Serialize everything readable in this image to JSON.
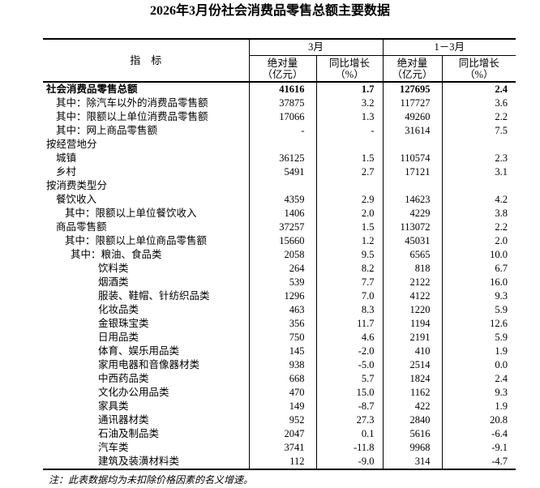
{
  "title": "2026年3月份社会消费品零售总额主要数据",
  "colors": {
    "text": "#000000",
    "background": "#ffffff",
    "border": "#000000"
  },
  "table": {
    "header": {
      "indicator": "指　标",
      "march": "3月",
      "jan_mar": "1－3月",
      "abs_line1": "绝对量",
      "abs_line2": "（亿元）",
      "yoy_line1": "同比增长",
      "yoy_line2": "（%）"
    },
    "rows": [
      {
        "label": "社会消费品零售总额",
        "indent": 0,
        "bold": true,
        "m_abs": "41616",
        "m_yoy": "1.7",
        "c_abs": "127695",
        "c_yoy": "2.4"
      },
      {
        "label": "其中：除汽车以外的消费品零售额",
        "indent": 1,
        "bold": false,
        "m_abs": "37875",
        "m_yoy": "3.2",
        "c_abs": "117727",
        "c_yoy": "3.6"
      },
      {
        "label": "其中：限额以上单位消费品零售额",
        "indent": 1,
        "bold": false,
        "m_abs": "17066",
        "m_yoy": "1.3",
        "c_abs": "49260",
        "c_yoy": "2.2"
      },
      {
        "label": "其中：网上商品零售额",
        "indent": 1,
        "bold": false,
        "m_abs": "-",
        "m_yoy": "-",
        "c_abs": "31614",
        "c_yoy": "7.5"
      },
      {
        "label": "按经营地分",
        "indent": 0,
        "bold": false,
        "m_abs": "",
        "m_yoy": "",
        "c_abs": "",
        "c_yoy": ""
      },
      {
        "label": "城镇",
        "indent": 1,
        "bold": false,
        "m_abs": "36125",
        "m_yoy": "1.5",
        "c_abs": "110574",
        "c_yoy": "2.3"
      },
      {
        "label": "乡村",
        "indent": 1,
        "bold": false,
        "m_abs": "5491",
        "m_yoy": "2.7",
        "c_abs": "17121",
        "c_yoy": "3.1"
      },
      {
        "label": "按消费类型分",
        "indent": 0,
        "bold": false,
        "m_abs": "",
        "m_yoy": "",
        "c_abs": "",
        "c_yoy": ""
      },
      {
        "label": "餐饮收入",
        "indent": 1,
        "bold": false,
        "m_abs": "4359",
        "m_yoy": "2.9",
        "c_abs": "14623",
        "c_yoy": "4.2"
      },
      {
        "label": "其中：限额以上单位餐饮收入",
        "indent": 2,
        "bold": false,
        "m_abs": "1406",
        "m_yoy": "2.0",
        "c_abs": "4229",
        "c_yoy": "3.8"
      },
      {
        "label": "商品零售额",
        "indent": 1,
        "bold": false,
        "m_abs": "37257",
        "m_yoy": "1.5",
        "c_abs": "113072",
        "c_yoy": "2.2"
      },
      {
        "label": "其中：限额以上单位商品零售额",
        "indent": 2,
        "bold": false,
        "m_abs": "15660",
        "m_yoy": "1.2",
        "c_abs": "45031",
        "c_yoy": "2.0"
      },
      {
        "label": "其中：粮油、食品类",
        "indent": 3,
        "bold": false,
        "m_abs": "2058",
        "m_yoy": "9.5",
        "c_abs": "6565",
        "c_yoy": "10.0"
      },
      {
        "label": "饮料类",
        "indent": 4,
        "bold": false,
        "m_abs": "264",
        "m_yoy": "8.2",
        "c_abs": "818",
        "c_yoy": "6.7"
      },
      {
        "label": "烟酒类",
        "indent": 4,
        "bold": false,
        "m_abs": "539",
        "m_yoy": "7.7",
        "c_abs": "2122",
        "c_yoy": "16.0"
      },
      {
        "label": "服装、鞋帽、针纺织品类",
        "indent": 4,
        "bold": false,
        "m_abs": "1296",
        "m_yoy": "7.0",
        "c_abs": "4122",
        "c_yoy": "9.3"
      },
      {
        "label": "化妆品类",
        "indent": 4,
        "bold": false,
        "m_abs": "463",
        "m_yoy": "8.3",
        "c_abs": "1220",
        "c_yoy": "5.9"
      },
      {
        "label": "金银珠宝类",
        "indent": 4,
        "bold": false,
        "m_abs": "356",
        "m_yoy": "11.7",
        "c_abs": "1194",
        "c_yoy": "12.6"
      },
      {
        "label": "日用品类",
        "indent": 4,
        "bold": false,
        "m_abs": "750",
        "m_yoy": "4.6",
        "c_abs": "2191",
        "c_yoy": "5.9"
      },
      {
        "label": "体育、娱乐用品类",
        "indent": 4,
        "bold": false,
        "m_abs": "145",
        "m_yoy": "-2.0",
        "c_abs": "410",
        "c_yoy": "1.9"
      },
      {
        "label": "家用电器和音像器材类",
        "indent": 4,
        "bold": false,
        "m_abs": "938",
        "m_yoy": "-5.0",
        "c_abs": "2514",
        "c_yoy": "0.0"
      },
      {
        "label": "中西药品类",
        "indent": 4,
        "bold": false,
        "m_abs": "668",
        "m_yoy": "5.7",
        "c_abs": "1824",
        "c_yoy": "2.4"
      },
      {
        "label": "文化办公用品类",
        "indent": 4,
        "bold": false,
        "m_abs": "470",
        "m_yoy": "15.0",
        "c_abs": "1162",
        "c_yoy": "9.3"
      },
      {
        "label": "家具类",
        "indent": 4,
        "bold": false,
        "m_abs": "149",
        "m_yoy": "-8.7",
        "c_abs": "422",
        "c_yoy": "1.9"
      },
      {
        "label": "通讯器材类",
        "indent": 4,
        "bold": false,
        "m_abs": "952",
        "m_yoy": "27.3",
        "c_abs": "2840",
        "c_yoy": "20.8"
      },
      {
        "label": "石油及制品类",
        "indent": 4,
        "bold": false,
        "m_abs": "2047",
        "m_yoy": "0.1",
        "c_abs": "5616",
        "c_yoy": "-6.4"
      },
      {
        "label": "汽车类",
        "indent": 4,
        "bold": false,
        "m_abs": "3741",
        "m_yoy": "-11.8",
        "c_abs": "9968",
        "c_yoy": "-9.1"
      },
      {
        "label": "建筑及装潢材料类",
        "indent": 4,
        "bold": false,
        "m_abs": "112",
        "m_yoy": "-9.0",
        "c_abs": "314",
        "c_yoy": "-4.7"
      }
    ]
  },
  "note": "注：此表数据均为未扣除价格因素的名义增速。"
}
